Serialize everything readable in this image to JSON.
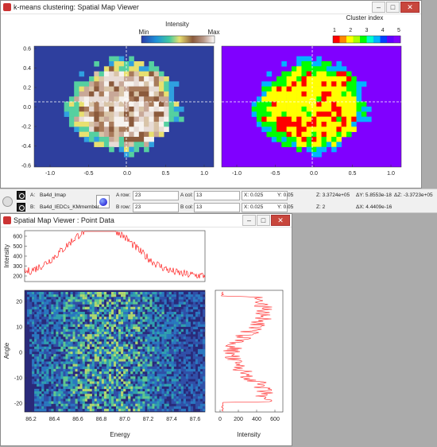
{
  "window1": {
    "title": "k-means clustering: Spatial Map Viewer",
    "left_colorbar": {
      "title": "Intensity",
      "min_label": "Min",
      "max_label": "Max"
    },
    "right_colorbar": {
      "title": "Cluster index",
      "ticks": [
        "1",
        "2",
        "3",
        "4",
        "5"
      ]
    },
    "y_ticks": [
      "0.6",
      "0.4",
      "0.2",
      "0.0",
      "-0.2",
      "-0.4",
      "-0.6"
    ],
    "x_ticks": [
      "-1.0",
      "-0.5",
      "0.0",
      "0.5",
      "1.0"
    ]
  },
  "statusbar": {
    "row_a": {
      "letter": "A:",
      "name": "Ba4d_lmap",
      "row_label": "A row:",
      "row_value": "23",
      "col_label": "A col:",
      "col_value": "13",
      "x": "X: 0.025",
      "y": "Y: 0.05",
      "z": "Z: 3.3724e+05",
      "dy": "ΔY: 5.8553e-18",
      "dz": "ΔZ: -3.3723e+05"
    },
    "row_b": {
      "letter": "B:",
      "name": "Ba4d_IEDCs_KMmember",
      "row_label": "B row:",
      "row_value": "23",
      "col_label": "B col:",
      "col_value": "13",
      "x": "X: 0.025",
      "y": "Y: 0.05",
      "z": "Z: 2",
      "dx": "ΔX: 4.4409e-16"
    }
  },
  "window2": {
    "title": "Spatial Map Viewer : Point Data",
    "top_plot": {
      "ylabel": "Intensity",
      "y_ticks": [
        "600",
        "500",
        "400",
        "300",
        "200"
      ]
    },
    "main_plot": {
      "xlabel": "Energy",
      "ylabel": "Angle",
      "x_ticks": [
        "86.2",
        "86.4",
        "86.6",
        "86.8",
        "87.0",
        "87.2",
        "87.4",
        "87.6"
      ],
      "y_ticks": [
        "20",
        "10",
        "0",
        "-10",
        "-20"
      ]
    },
    "side_plot": {
      "xlabel": "Intensity",
      "x_ticks": [
        "0",
        "200",
        "400",
        "600"
      ]
    }
  },
  "colors": {
    "cluster": [
      "#ff0000",
      "#ffff00",
      "#00ff00",
      "#00b4ff",
      "#8000ff"
    ],
    "trace": "#ff0000"
  }
}
